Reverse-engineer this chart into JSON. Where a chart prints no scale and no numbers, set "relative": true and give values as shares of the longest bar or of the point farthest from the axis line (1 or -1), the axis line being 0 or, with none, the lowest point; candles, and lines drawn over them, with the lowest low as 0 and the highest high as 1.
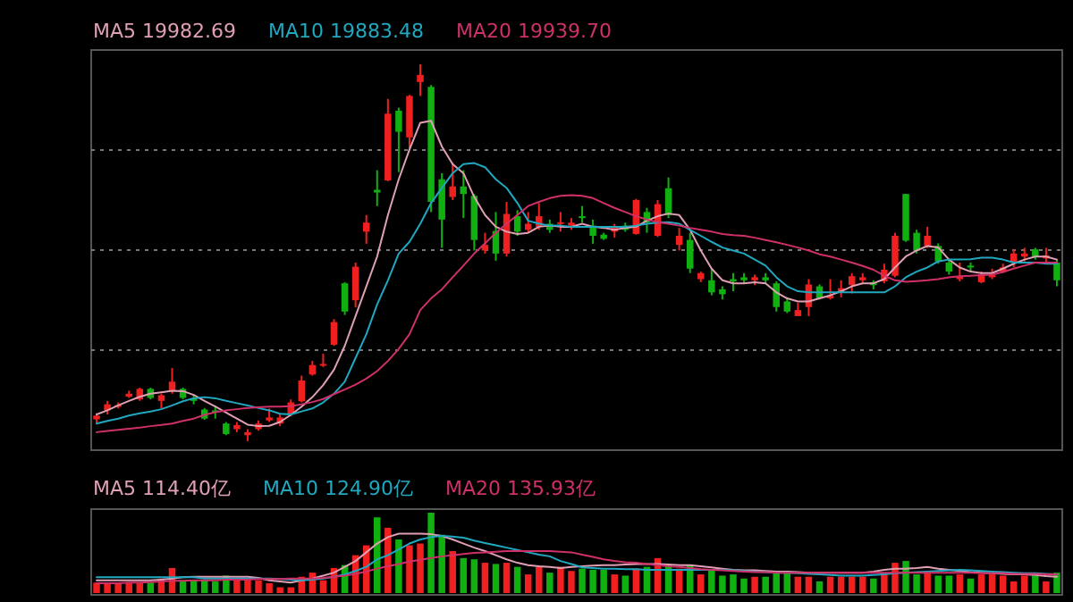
{
  "chart_data": [
    {
      "type": "candlestick",
      "relative": true,
      "grid": "y",
      "legend": "top left",
      "categories": [
        null,
        null,
        null,
        null,
        null,
        null,
        null,
        null,
        null,
        null,
        null,
        null,
        null,
        null,
        null,
        null,
        null,
        null,
        null,
        null,
        null,
        null,
        null,
        null,
        null,
        null,
        null,
        null,
        null,
        null,
        null,
        null,
        null,
        null,
        null,
        null,
        null,
        null,
        null,
        null,
        null,
        null,
        null,
        null,
        null,
        null,
        null,
        null,
        null,
        null,
        null,
        null,
        null,
        null,
        null,
        null,
        null,
        null,
        null,
        null,
        null,
        null,
        null,
        null,
        null,
        null,
        null,
        null,
        null,
        null,
        null,
        null,
        null,
        null,
        null,
        null,
        null,
        null,
        null,
        null,
        null,
        null,
        null,
        null,
        null,
        null,
        null,
        null,
        null,
        null
      ],
      "ohlc": [
        [
          0.058,
          0.074,
          0.047,
          0.068
        ],
        [
          0.082,
          0.107,
          0.071,
          0.098
        ],
        [
          0.092,
          0.103,
          0.087,
          0.096
        ],
        [
          0.118,
          0.134,
          0.115,
          0.126
        ],
        [
          0.111,
          0.142,
          0.107,
          0.139
        ],
        [
          0.139,
          0.142,
          0.111,
          0.115
        ],
        [
          0.107,
          0.126,
          0.087,
          0.122
        ],
        [
          0.134,
          0.194,
          0.126,
          0.158
        ],
        [
          0.139,
          0.142,
          0.111,
          0.115
        ],
        [
          0.114,
          0.123,
          0.098,
          0.107
        ],
        [
          0.084,
          0.088,
          0.057,
          0.06
        ],
        [
          0.082,
          0.095,
          0.06,
          0.076
        ],
        [
          0.047,
          0.051,
          0.016,
          0.019
        ],
        [
          0.032,
          0.051,
          0.024,
          0.043
        ],
        [
          0.016,
          0.032,
          0.0,
          0.024
        ],
        [
          0.032,
          0.055,
          0.028,
          0.047
        ],
        [
          0.055,
          0.087,
          0.051,
          0.063
        ],
        [
          0.047,
          0.071,
          0.04,
          0.063
        ],
        [
          0.071,
          0.111,
          0.066,
          0.103
        ],
        [
          0.106,
          0.174,
          0.103,
          0.161
        ],
        [
          0.177,
          0.213,
          0.174,
          0.202
        ],
        [
          0.201,
          0.232,
          0.197,
          0.205
        ],
        [
          0.256,
          0.324,
          0.253,
          0.316
        ],
        [
          0.419,
          0.422,
          0.335,
          0.344
        ],
        [
          0.374,
          0.474,
          0.355,
          0.463
        ],
        [
          0.556,
          0.6,
          0.524,
          0.58
        ],
        [
          0.667,
          0.719,
          0.624,
          0.66
        ],
        [
          0.692,
          0.908,
          0.69,
          0.869
        ],
        [
          0.877,
          0.885,
          0.714,
          0.821
        ],
        [
          0.806,
          0.919,
          0.777,
          0.916
        ],
        [
          0.953,
          1.0,
          0.916,
          0.972
        ],
        [
          0.94,
          0.945,
          0.608,
          0.635
        ],
        [
          0.695,
          0.711,
          0.513,
          0.588
        ],
        [
          0.648,
          0.739,
          0.64,
          0.676
        ],
        [
          0.676,
          0.719,
          0.592,
          0.656
        ],
        [
          0.651,
          0.656,
          0.506,
          0.534
        ],
        [
          0.506,
          0.553,
          0.498,
          0.521
        ],
        [
          0.558,
          0.608,
          0.479,
          0.498
        ],
        [
          0.498,
          0.635,
          0.49,
          0.603
        ],
        [
          0.597,
          0.613,
          0.545,
          0.556
        ],
        [
          0.561,
          0.608,
          0.553,
          0.577
        ],
        [
          0.569,
          0.632,
          0.561,
          0.597
        ],
        [
          0.577,
          0.588,
          0.553,
          0.561
        ],
        [
          0.577,
          0.608,
          0.556,
          0.581
        ],
        [
          0.572,
          0.592,
          0.561,
          0.58
        ],
        [
          0.597,
          0.624,
          0.58,
          0.592
        ],
        [
          0.572,
          0.588,
          0.524,
          0.545
        ],
        [
          0.548,
          0.553,
          0.534,
          0.537
        ],
        [
          0.556,
          0.577,
          0.54,
          0.566
        ],
        [
          0.572,
          0.58,
          0.556,
          0.561
        ],
        [
          0.55,
          0.643,
          0.548,
          0.64
        ],
        [
          0.608,
          0.619,
          0.553,
          0.581
        ],
        [
          0.545,
          0.64,
          0.542,
          0.629
        ],
        [
          0.671,
          0.7,
          0.592,
          0.6
        ],
        [
          0.521,
          0.566,
          0.506,
          0.545
        ],
        [
          0.534,
          0.553,
          0.446,
          0.458
        ],
        [
          0.43,
          0.45,
          0.422,
          0.446
        ],
        [
          0.427,
          0.458,
          0.387,
          0.395
        ],
        [
          0.403,
          0.411,
          0.376,
          0.39
        ],
        [
          0.43,
          0.446,
          0.398,
          0.424
        ],
        [
          0.435,
          0.446,
          0.419,
          0.427
        ],
        [
          0.427,
          0.442,
          0.414,
          0.435
        ],
        [
          0.435,
          0.446,
          0.419,
          0.427
        ],
        [
          0.419,
          0.424,
          0.344,
          0.356
        ],
        [
          0.371,
          0.379,
          0.34,
          0.344
        ],
        [
          0.332,
          0.367,
          0.332,
          0.348
        ],
        [
          0.356,
          0.43,
          0.332,
          0.416
        ],
        [
          0.411,
          0.416,
          0.376,
          0.379
        ],
        [
          0.379,
          0.43,
          0.376,
          0.387
        ],
        [
          0.395,
          0.427,
          0.382,
          0.406
        ],
        [
          0.414,
          0.446,
          0.392,
          0.438
        ],
        [
          0.427,
          0.446,
          0.419,
          0.435
        ],
        [
          0.422,
          0.427,
          0.403,
          0.414
        ],
        [
          0.424,
          0.471,
          0.419,
          0.455
        ],
        [
          0.439,
          0.553,
          0.435,
          0.545
        ],
        [
          0.656,
          0.656,
          0.529,
          0.532
        ],
        [
          0.553,
          0.561,
          0.498,
          0.506
        ],
        [
          0.518,
          0.569,
          0.513,
          0.545
        ],
        [
          0.518,
          0.525,
          0.471,
          0.477
        ],
        [
          0.474,
          0.482,
          0.442,
          0.45
        ],
        [
          0.43,
          0.474,
          0.424,
          0.438
        ],
        [
          0.466,
          0.474,
          0.45,
          0.461
        ],
        [
          0.422,
          0.45,
          0.419,
          0.442
        ],
        [
          0.435,
          0.458,
          0.43,
          0.442
        ],
        [
          0.45,
          0.471,
          0.446,
          0.461
        ],
        [
          0.474,
          0.509,
          0.461,
          0.498
        ],
        [
          0.49,
          0.513,
          0.477,
          0.498
        ],
        [
          0.509,
          0.513,
          0.482,
          0.49
        ],
        [
          0.485,
          0.513,
          0.474,
          0.493
        ],
        [
          0.474,
          0.482,
          0.411,
          0.427
        ]
      ],
      "colors": [
        "#f02020",
        "#f02020",
        "#f02020",
        "#f02020",
        "#f02020",
        "#10b010",
        "#f02020",
        "#f02020",
        "#10b010",
        "#10b010",
        "#10b010",
        "#10b010",
        "#10b010",
        "#f02020",
        "#f02020",
        "#f02020",
        "#f02020",
        "#f02020",
        "#f02020",
        "#f02020",
        "#f02020",
        "#f02020",
        "#f02020",
        "#10b010",
        "#f02020",
        "#f02020",
        "#10b010",
        "#f02020",
        "#10b010",
        "#f02020",
        "#f02020",
        "#10b010",
        "#10b010",
        "#f02020",
        "#10b010",
        "#10b010",
        "#f02020",
        "#10b010",
        "#f02020",
        "#10b010",
        "#f02020",
        "#f02020",
        "#10b010",
        "#f02020",
        "#f02020",
        "#10b010",
        "#10b010",
        "#10b010",
        "#f02020",
        "#10b010",
        "#f02020",
        "#10b010",
        "#f02020",
        "#10b010",
        "#f02020",
        "#10b010",
        "#f02020",
        "#10b010",
        "#10b010",
        "#10b010",
        "#10b010",
        "#f02020",
        "#10b010",
        "#10b010",
        "#10b010",
        "#f02020",
        "#f02020",
        "#10b010",
        "#f02020",
        "#f02020",
        "#f02020",
        "#f02020",
        "#10b010",
        "#f02020",
        "#f02020",
        "#10b010",
        "#10b010",
        "#f02020",
        "#10b010",
        "#10b010",
        "#f02020",
        "#10b010",
        "#f02020",
        "#f02020",
        "#f02020",
        "#f02020",
        "#f02020",
        "#10b010",
        "#f02020",
        "#10b010"
      ],
      "series": [
        {
          "type": "line",
          "name": "MA5 19982.69",
          "color": "#e0a0b4",
          "values": [
            0.071,
            0.082,
            0.095,
            0.107,
            0.118,
            0.126,
            0.13,
            0.134,
            0.133,
            0.123,
            0.107,
            0.092,
            0.076,
            0.06,
            0.044,
            0.04,
            0.041,
            0.051,
            0.07,
            0.092,
            0.117,
            0.149,
            0.19,
            0.253,
            0.332,
            0.411,
            0.49,
            0.6,
            0.695,
            0.774,
            0.845,
            0.85,
            0.782,
            0.735,
            0.711,
            0.648,
            0.6,
            0.569,
            0.556,
            0.55,
            0.553,
            0.569,
            0.572,
            0.569,
            0.569,
            0.577,
            0.569,
            0.566,
            0.561,
            0.566,
            0.569,
            0.585,
            0.597,
            0.604,
            0.6,
            0.561,
            0.506,
            0.458,
            0.427,
            0.419,
            0.419,
            0.422,
            0.419,
            0.395,
            0.379,
            0.371,
            0.371,
            0.379,
            0.387,
            0.398,
            0.411,
            0.419,
            0.419,
            0.43,
            0.461,
            0.49,
            0.506,
            0.518,
            0.514,
            0.482,
            0.461,
            0.45,
            0.446,
            0.446,
            0.458,
            0.471,
            0.482,
            0.49,
            0.49,
            0.482
          ]
        },
        {
          "type": "line",
          "name": "MA10 19883.48",
          "color": "#20a8c0",
          "values": [
            0.047,
            0.054,
            0.06,
            0.068,
            0.074,
            0.079,
            0.085,
            0.095,
            0.106,
            0.114,
            0.117,
            0.114,
            0.107,
            0.101,
            0.095,
            0.088,
            0.082,
            0.073,
            0.071,
            0.079,
            0.087,
            0.103,
            0.126,
            0.158,
            0.221,
            0.284,
            0.363,
            0.427,
            0.498,
            0.529,
            0.577,
            0.632,
            0.672,
            0.711,
            0.735,
            0.738,
            0.727,
            0.695,
            0.672,
            0.632,
            0.585,
            0.577,
            0.572,
            0.572,
            0.569,
            0.569,
            0.569,
            0.569,
            0.569,
            0.569,
            0.572,
            0.577,
            0.58,
            0.581,
            0.577,
            0.561,
            0.545,
            0.529,
            0.514,
            0.506,
            0.498,
            0.482,
            0.466,
            0.435,
            0.411,
            0.398,
            0.395,
            0.395,
            0.395,
            0.395,
            0.395,
            0.395,
            0.395,
            0.395,
            0.411,
            0.435,
            0.45,
            0.461,
            0.477,
            0.482,
            0.482,
            0.483,
            0.487,
            0.487,
            0.482,
            0.474,
            0.474,
            0.474,
            0.471,
            0.471
          ]
        },
        {
          "type": "line",
          "name": "MA20 19939.70",
          "color": "#d0306a",
          "values": [
            0.024,
            0.027,
            0.03,
            0.033,
            0.036,
            0.04,
            0.043,
            0.047,
            0.054,
            0.06,
            0.07,
            0.077,
            0.082,
            0.085,
            0.088,
            0.09,
            0.092,
            0.092,
            0.093,
            0.098,
            0.104,
            0.112,
            0.125,
            0.137,
            0.15,
            0.166,
            0.186,
            0.213,
            0.245,
            0.284,
            0.348,
            0.379,
            0.403,
            0.435,
            0.466,
            0.498,
            0.525,
            0.553,
            0.577,
            0.6,
            0.624,
            0.635,
            0.645,
            0.651,
            0.653,
            0.651,
            0.645,
            0.632,
            0.619,
            0.608,
            0.597,
            0.588,
            0.581,
            0.577,
            0.572,
            0.566,
            0.561,
            0.556,
            0.55,
            0.547,
            0.545,
            0.54,
            0.534,
            0.528,
            0.521,
            0.514,
            0.506,
            0.496,
            0.49,
            0.482,
            0.474,
            0.465,
            0.455,
            0.439,
            0.427,
            0.423,
            0.425,
            0.427,
            0.43,
            0.435,
            0.438,
            0.439,
            0.441,
            0.442,
            0.449,
            0.458,
            0.466,
            0.474,
            0.474,
            0.474
          ]
        }
      ]
    },
    {
      "type": "bar",
      "relative": true,
      "legend": "top left",
      "categories": [
        null,
        null,
        null,
        null,
        null,
        null,
        null,
        null,
        null,
        null,
        null,
        null,
        null,
        null,
        null,
        null,
        null,
        null,
        null,
        null,
        null,
        null,
        null,
        null,
        null,
        null,
        null,
        null,
        null,
        null,
        null,
        null,
        null,
        null,
        null,
        null,
        null,
        null,
        null,
        null,
        null,
        null,
        null,
        null,
        null,
        null,
        null,
        null,
        null,
        null,
        null,
        null,
        null,
        null,
        null,
        null,
        null,
        null,
        null,
        null,
        null,
        null,
        null,
        null,
        null,
        null,
        null,
        null,
        null,
        null,
        null,
        null,
        null,
        null,
        null,
        null,
        null,
        null,
        null,
        null,
        null,
        null,
        null,
        null,
        null,
        null,
        null,
        null,
        null,
        null
      ],
      "series": [
        {
          "type": "bar",
          "values": [
            0.13,
            0.13,
            0.13,
            0.13,
            0.13,
            0.13,
            0.181,
            0.312,
            0.159,
            0.159,
            0.159,
            0.145,
            0.217,
            0.159,
            0.159,
            0.159,
            0.123,
            0.072,
            0.072,
            0.203,
            0.254,
            0.159,
            0.312,
            0.348,
            0.471,
            0.594,
            0.942,
            0.812,
            0.667,
            0.594,
            0.616,
            1.0,
            0.725,
            0.522,
            0.435,
            0.42,
            0.377,
            0.362,
            0.377,
            0.326,
            0.232,
            0.326,
            0.254,
            0.326,
            0.275,
            0.304,
            0.29,
            0.29,
            0.232,
            0.217,
            0.304,
            0.326,
            0.435,
            0.348,
            0.304,
            0.348,
            0.232,
            0.29,
            0.217,
            0.232,
            0.181,
            0.203,
            0.203,
            0.254,
            0.275,
            0.203,
            0.203,
            0.145,
            0.203,
            0.203,
            0.203,
            0.203,
            0.181,
            0.254,
            0.377,
            0.399,
            0.232,
            0.254,
            0.217,
            0.217,
            0.232,
            0.181,
            0.232,
            0.232,
            0.217,
            0.145,
            0.217,
            0.217,
            0.145,
            0.254
          ],
          "colors": [
            "#f02020",
            "#f02020",
            "#f02020",
            "#f02020",
            "#f02020",
            "#10b010",
            "#f02020",
            "#f02020",
            "#10b010",
            "#10b010",
            "#10b010",
            "#10b010",
            "#10b010",
            "#f02020",
            "#f02020",
            "#f02020",
            "#f02020",
            "#f02020",
            "#f02020",
            "#f02020",
            "#f02020",
            "#f02020",
            "#f02020",
            "#10b010",
            "#f02020",
            "#f02020",
            "#10b010",
            "#f02020",
            "#10b010",
            "#f02020",
            "#f02020",
            "#10b010",
            "#10b010",
            "#f02020",
            "#10b010",
            "#10b010",
            "#f02020",
            "#10b010",
            "#f02020",
            "#10b010",
            "#f02020",
            "#f02020",
            "#10b010",
            "#f02020",
            "#f02020",
            "#10b010",
            "#10b010",
            "#10b010",
            "#f02020",
            "#10b010",
            "#f02020",
            "#10b010",
            "#f02020",
            "#10b010",
            "#f02020",
            "#10b010",
            "#f02020",
            "#10b010",
            "#10b010",
            "#10b010",
            "#10b010",
            "#f02020",
            "#10b010",
            "#10b010",
            "#10b010",
            "#f02020",
            "#f02020",
            "#10b010",
            "#f02020",
            "#f02020",
            "#f02020",
            "#f02020",
            "#10b010",
            "#f02020",
            "#f02020",
            "#10b010",
            "#10b010",
            "#f02020",
            "#10b010",
            "#10b010",
            "#f02020",
            "#10b010",
            "#f02020",
            "#f02020",
            "#f02020",
            "#f02020",
            "#f02020",
            "#10b010",
            "#f02020",
            "#10b010"
          ]
        },
        {
          "type": "line",
          "name": "MA5 114.40亿",
          "color": "#e0a0b4",
          "values": [
            0.159,
            0.159,
            0.159,
            0.159,
            0.159,
            0.159,
            0.167,
            0.181,
            0.196,
            0.203,
            0.203,
            0.203,
            0.203,
            0.203,
            0.203,
            0.188,
            0.159,
            0.145,
            0.13,
            0.159,
            0.181,
            0.217,
            0.254,
            0.326,
            0.399,
            0.507,
            0.616,
            0.696,
            0.739,
            0.739,
            0.739,
            0.732,
            0.71,
            0.667,
            0.616,
            0.565,
            0.522,
            0.471,
            0.42,
            0.377,
            0.348,
            0.333,
            0.326,
            0.312,
            0.326,
            0.333,
            0.341,
            0.348,
            0.348,
            0.355,
            0.362,
            0.362,
            0.362,
            0.355,
            0.348,
            0.348,
            0.333,
            0.319,
            0.304,
            0.29,
            0.283,
            0.283,
            0.275,
            0.268,
            0.268,
            0.261,
            0.254,
            0.254,
            0.254,
            0.254,
            0.254,
            0.254,
            0.268,
            0.29,
            0.304,
            0.304,
            0.312,
            0.326,
            0.304,
            0.29,
            0.275,
            0.261,
            0.254,
            0.246,
            0.239,
            0.232,
            0.232,
            0.225,
            0.21,
            0.203
          ]
        },
        {
          "type": "line",
          "name": "MA10 124.90亿",
          "color": "#20a8c0",
          "values": [
            0.196,
            0.196,
            0.196,
            0.196,
            0.196,
            0.196,
            0.196,
            0.196,
            0.196,
            0.196,
            0.181,
            0.181,
            0.181,
            0.181,
            0.181,
            0.181,
            0.181,
            0.174,
            0.167,
            0.159,
            0.167,
            0.181,
            0.203,
            0.232,
            0.275,
            0.326,
            0.42,
            0.471,
            0.543,
            0.616,
            0.667,
            0.696,
            0.71,
            0.703,
            0.688,
            0.652,
            0.623,
            0.594,
            0.565,
            0.536,
            0.507,
            0.478,
            0.457,
            0.399,
            0.362,
            0.319,
            0.312,
            0.304,
            0.304,
            0.297,
            0.297,
            0.29,
            0.29,
            0.29,
            0.29,
            0.29,
            0.29,
            0.29,
            0.29,
            0.283,
            0.275,
            0.268,
            0.261,
            0.254,
            0.254,
            0.246,
            0.239,
            0.232,
            0.225,
            0.217,
            0.217,
            0.217,
            0.225,
            0.232,
            0.246,
            0.254,
            0.261,
            0.268,
            0.275,
            0.283,
            0.29,
            0.283,
            0.275,
            0.268,
            0.261,
            0.254,
            0.246,
            0.246,
            0.239,
            0.232
          ]
        },
        {
          "type": "line",
          "name": "MA20 135.93亿",
          "color": "#d0306a",
          "values": [
            0.123,
            0.123,
            0.123,
            0.13,
            0.13,
            0.137,
            0.145,
            0.152,
            0.152,
            0.159,
            0.159,
            0.159,
            0.167,
            0.167,
            0.167,
            0.174,
            0.174,
            0.174,
            0.181,
            0.181,
            0.181,
            0.188,
            0.203,
            0.217,
            0.239,
            0.268,
            0.304,
            0.333,
            0.362,
            0.391,
            0.413,
            0.435,
            0.457,
            0.471,
            0.486,
            0.5,
            0.507,
            0.514,
            0.522,
            0.522,
            0.522,
            0.522,
            0.522,
            0.514,
            0.507,
            0.478,
            0.449,
            0.42,
            0.399,
            0.384,
            0.377,
            0.362,
            0.348,
            0.333,
            0.326,
            0.312,
            0.297,
            0.29,
            0.283,
            0.275,
            0.268,
            0.261,
            0.261,
            0.254,
            0.254,
            0.254,
            0.254,
            0.254,
            0.254,
            0.254,
            0.254,
            0.254,
            0.254,
            0.254,
            0.254,
            0.254,
            0.254,
            0.254,
            0.254,
            0.254,
            0.254,
            0.254,
            0.246,
            0.246,
            0.246,
            0.239,
            0.239,
            0.239,
            0.232,
            0.232
          ]
        }
      ]
    }
  ]
}
